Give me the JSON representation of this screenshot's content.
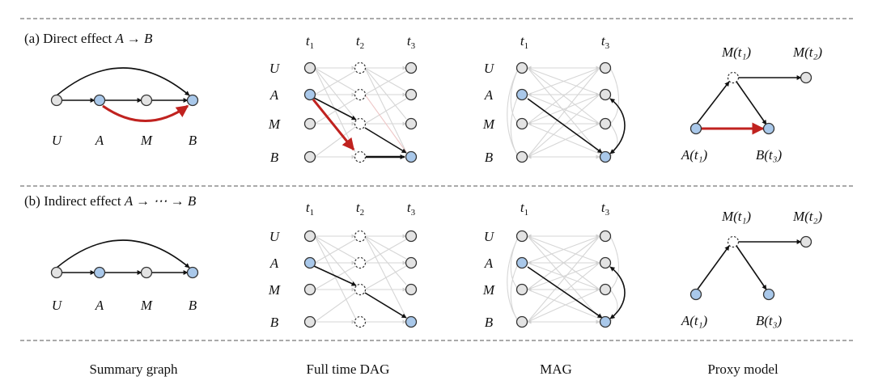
{
  "rows": [
    {
      "id": "a",
      "prefix": "(a) Direct effect ",
      "math": "A → B"
    },
    {
      "id": "b",
      "prefix": "(b) Indirect effect ",
      "math": "A → ⋯ → B"
    }
  ],
  "column_titles": [
    "Summary graph",
    "Full time DAG",
    "MAG",
    "Proxy model"
  ],
  "variables": [
    "U",
    "A",
    "M",
    "B"
  ],
  "time_labels": {
    "t1": {
      "base": "t",
      "sub": "1"
    },
    "t2": {
      "base": "t",
      "sub": "2"
    },
    "t3": {
      "base": "t",
      "sub": "3"
    }
  },
  "proxy_labels": {
    "m_t1": "M(t₁)",
    "m_t2": "M(t₂)",
    "a_t1": "A(t₁)",
    "b_t3": "B(t₃)"
  },
  "colors": {
    "highlight_edge": "#c0221f",
    "treated_node": "#a9c8ea",
    "plain_node": "#e3e3e3"
  }
}
